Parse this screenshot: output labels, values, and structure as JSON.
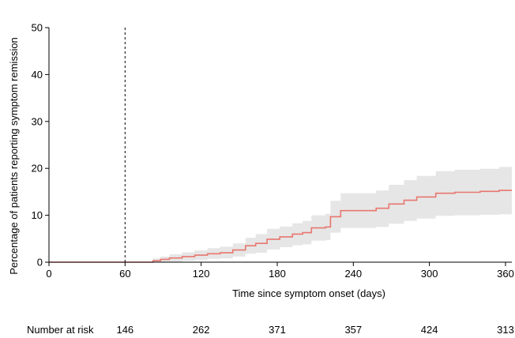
{
  "chart_data": {
    "type": "line",
    "title": "",
    "xlabel": "Time since symptom onset (days)",
    "ylabel": "Percentage of patients reporting symptom remission",
    "xlim": [
      0,
      365
    ],
    "ylim": [
      0,
      50
    ],
    "x_ticks": [
      0,
      60,
      120,
      180,
      240,
      300,
      360
    ],
    "y_ticks": [
      0,
      10,
      20,
      30,
      40,
      50
    ],
    "grid": false,
    "reference_line": {
      "x": 60,
      "style": "dashed"
    },
    "series": [
      {
        "color": "#e8776f",
        "ci_color": "#e6e6e6",
        "points": [
          {
            "x": 0,
            "y": 0,
            "lo": 0,
            "hi": 0
          },
          {
            "x": 78,
            "y": 0,
            "lo": 0,
            "hi": 0
          },
          {
            "x": 82,
            "y": 0.3,
            "lo": 0,
            "hi": 0.8
          },
          {
            "x": 88,
            "y": 0.6,
            "lo": 0,
            "hi": 1.2
          },
          {
            "x": 95,
            "y": 0.9,
            "lo": 0.1,
            "hi": 1.7
          },
          {
            "x": 105,
            "y": 1.2,
            "lo": 0.3,
            "hi": 2.1
          },
          {
            "x": 115,
            "y": 1.5,
            "lo": 0.5,
            "hi": 2.5
          },
          {
            "x": 125,
            "y": 1.8,
            "lo": 0.7,
            "hi": 3.0
          },
          {
            "x": 135,
            "y": 2.0,
            "lo": 0.8,
            "hi": 3.3
          },
          {
            "x": 145,
            "y": 2.6,
            "lo": 1.2,
            "hi": 4.0
          },
          {
            "x": 155,
            "y": 3.5,
            "lo": 1.8,
            "hi": 5.2
          },
          {
            "x": 163,
            "y": 4.0,
            "lo": 2.0,
            "hi": 6.0
          },
          {
            "x": 172,
            "y": 4.9,
            "lo": 2.7,
            "hi": 7.1
          },
          {
            "x": 182,
            "y": 5.4,
            "lo": 3.2,
            "hi": 7.6
          },
          {
            "x": 192,
            "y": 6.0,
            "lo": 3.6,
            "hi": 8.3
          },
          {
            "x": 200,
            "y": 6.3,
            "lo": 3.8,
            "hi": 8.8
          },
          {
            "x": 207,
            "y": 7.3,
            "lo": 4.6,
            "hi": 10.0
          },
          {
            "x": 218,
            "y": 7.5,
            "lo": 4.7,
            "hi": 10.3
          },
          {
            "x": 222,
            "y": 9.7,
            "lo": 6.3,
            "hi": 13.1
          },
          {
            "x": 230,
            "y": 11.0,
            "lo": 7.3,
            "hi": 14.7
          },
          {
            "x": 258,
            "y": 11.5,
            "lo": 7.5,
            "hi": 15.3
          },
          {
            "x": 268,
            "y": 12.4,
            "lo": 8.2,
            "hi": 16.5
          },
          {
            "x": 280,
            "y": 13.2,
            "lo": 8.8,
            "hi": 17.5
          },
          {
            "x": 290,
            "y": 13.9,
            "lo": 9.3,
            "hi": 18.4
          },
          {
            "x": 305,
            "y": 14.7,
            "lo": 9.9,
            "hi": 19.4
          },
          {
            "x": 320,
            "y": 14.9,
            "lo": 10.0,
            "hi": 19.7
          },
          {
            "x": 340,
            "y": 15.1,
            "lo": 10.1,
            "hi": 19.9
          },
          {
            "x": 355,
            "y": 15.3,
            "lo": 10.2,
            "hi": 20.3
          },
          {
            "x": 365,
            "y": 15.3,
            "lo": 10.2,
            "hi": 20.3
          }
        ]
      }
    ],
    "number_at_risk": {
      "label": "Number at risk",
      "values": [
        {
          "x": 60,
          "n": "146"
        },
        {
          "x": 120,
          "n": "262"
        },
        {
          "x": 180,
          "n": "371"
        },
        {
          "x": 240,
          "n": "357"
        },
        {
          "x": 300,
          "n": "424"
        },
        {
          "x": 360,
          "n": "313"
        }
      ]
    }
  }
}
